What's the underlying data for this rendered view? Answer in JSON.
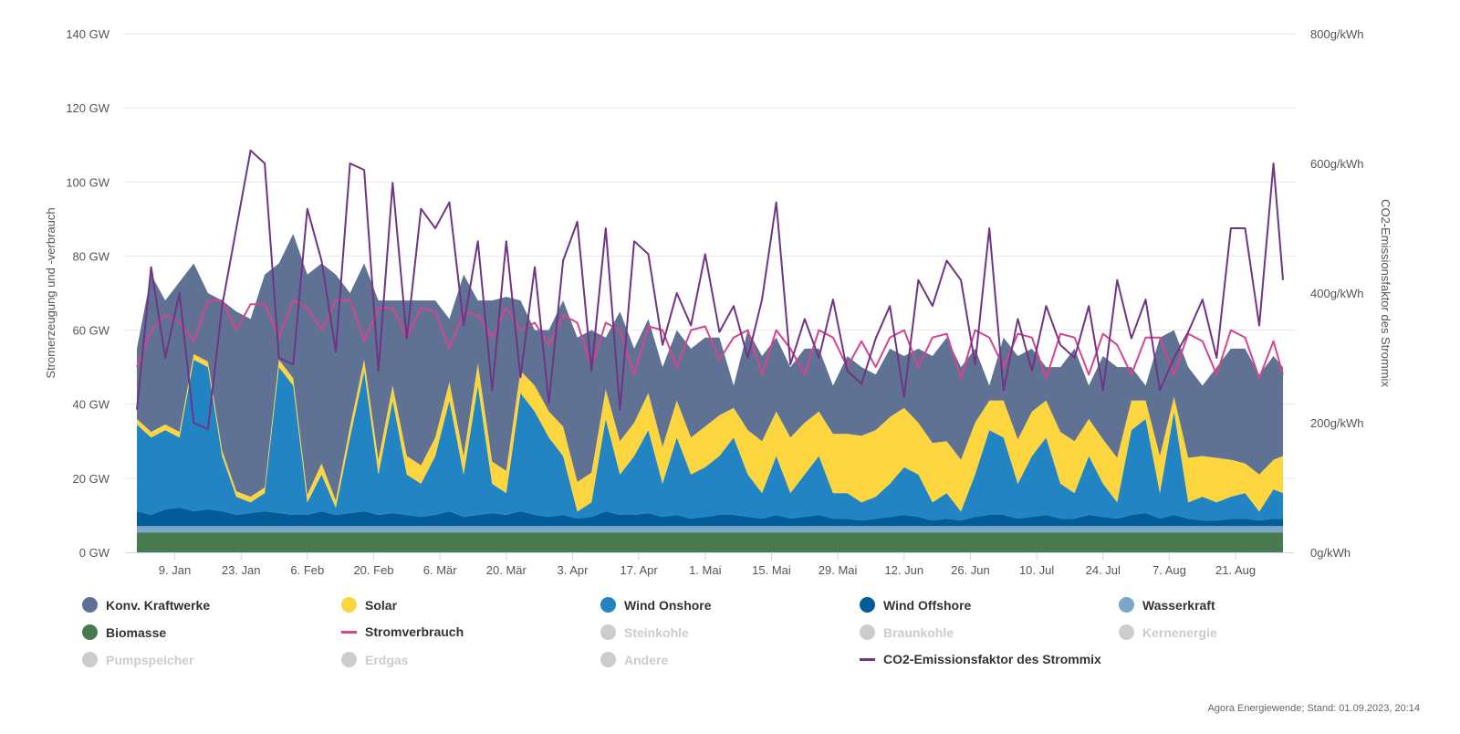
{
  "chart_data": {
    "type": "area",
    "stacked": true,
    "ylabel": "Stromerzeugung und -verbrauch",
    "ylabel_right": "CO2-Emissionsfaktor des Strommix",
    "ylim": [
      0,
      140
    ],
    "ylim_right": [
      0,
      800
    ],
    "yticks": [
      "0 GW",
      "20 GW",
      "40 GW",
      "60 GW",
      "80 GW",
      "100 GW",
      "120 GW",
      "140 GW"
    ],
    "yticks_values": [
      0,
      20,
      40,
      60,
      80,
      100,
      120,
      140
    ],
    "yticks_right": [
      "0g/kWh",
      "200g/kWh",
      "400g/kWh",
      "600g/kWh",
      "800g/kWh"
    ],
    "yticks_right_values": [
      0,
      200,
      400,
      600,
      800
    ],
    "xticks": [
      "9. Jan",
      "23. Jan",
      "6. Feb",
      "20. Feb",
      "6. Mär",
      "20. Mär",
      "3. Apr",
      "17. Apr",
      "1. Mai",
      "15. Mai",
      "29. Mai",
      "12. Jun",
      "26. Jun",
      "10. Jul",
      "24. Jul",
      "7. Aug",
      "21. Aug"
    ],
    "xticks_dates": [
      "2023-01-09",
      "2023-01-23",
      "2023-02-06",
      "2023-02-20",
      "2023-03-06",
      "2023-03-20",
      "2023-04-03",
      "2023-04-17",
      "2023-05-01",
      "2023-05-15",
      "2023-05-29",
      "2023-06-12",
      "2023-06-26",
      "2023-07-10",
      "2023-07-24",
      "2023-08-07",
      "2023-08-21"
    ],
    "xlim": [
      "2023-01-01",
      "2023-08-31"
    ],
    "grid": true,
    "legend_position": "bottom",
    "x": [
      "2023-01-01",
      "2023-01-04",
      "2023-01-07",
      "2023-01-10",
      "2023-01-13",
      "2023-01-16",
      "2023-01-19",
      "2023-01-22",
      "2023-01-25",
      "2023-01-28",
      "2023-01-31",
      "2023-02-03",
      "2023-02-06",
      "2023-02-09",
      "2023-02-12",
      "2023-02-15",
      "2023-02-18",
      "2023-02-21",
      "2023-02-24",
      "2023-02-27",
      "2023-03-02",
      "2023-03-05",
      "2023-03-08",
      "2023-03-11",
      "2023-03-14",
      "2023-03-17",
      "2023-03-20",
      "2023-03-23",
      "2023-03-26",
      "2023-03-29",
      "2023-04-01",
      "2023-04-04",
      "2023-04-07",
      "2023-04-10",
      "2023-04-13",
      "2023-04-16",
      "2023-04-19",
      "2023-04-22",
      "2023-04-25",
      "2023-04-28",
      "2023-05-01",
      "2023-05-04",
      "2023-05-07",
      "2023-05-10",
      "2023-05-13",
      "2023-05-16",
      "2023-05-19",
      "2023-05-22",
      "2023-05-25",
      "2023-05-28",
      "2023-05-31",
      "2023-06-03",
      "2023-06-06",
      "2023-06-09",
      "2023-06-12",
      "2023-06-15",
      "2023-06-18",
      "2023-06-21",
      "2023-06-24",
      "2023-06-27",
      "2023-06-30",
      "2023-07-03",
      "2023-07-06",
      "2023-07-09",
      "2023-07-12",
      "2023-07-15",
      "2023-07-18",
      "2023-07-21",
      "2023-07-24",
      "2023-07-27",
      "2023-07-30",
      "2023-08-02",
      "2023-08-05",
      "2023-08-08",
      "2023-08-11",
      "2023-08-14",
      "2023-08-17",
      "2023-08-20",
      "2023-08-23",
      "2023-08-26",
      "2023-08-29",
      "2023-08-31"
    ],
    "series": [
      {
        "name": "Biomasse",
        "kind": "area",
        "color": "#487a50",
        "values": [
          5.3,
          5.3,
          5.3,
          5.3,
          5.3,
          5.3,
          5.3,
          5.3,
          5.3,
          5.3,
          5.3,
          5.3,
          5.3,
          5.3,
          5.3,
          5.3,
          5.3,
          5.3,
          5.3,
          5.3,
          5.3,
          5.3,
          5.3,
          5.3,
          5.3,
          5.3,
          5.3,
          5.3,
          5.3,
          5.3,
          5.3,
          5.3,
          5.3,
          5.3,
          5.3,
          5.3,
          5.3,
          5.3,
          5.3,
          5.3,
          5.3,
          5.3,
          5.3,
          5.3,
          5.3,
          5.3,
          5.3,
          5.3,
          5.3,
          5.3,
          5.3,
          5.3,
          5.3,
          5.3,
          5.3,
          5.3,
          5.3,
          5.3,
          5.3,
          5.3,
          5.3,
          5.3,
          5.3,
          5.3,
          5.3,
          5.3,
          5.3,
          5.3,
          5.3,
          5.3,
          5.3,
          5.3,
          5.3,
          5.3,
          5.3,
          5.3,
          5.3,
          5.3,
          5.3,
          5.3,
          5.3,
          5.3
        ]
      },
      {
        "name": "Wasserkraft",
        "kind": "area",
        "color": "#7ba6c9",
        "values": [
          1.8,
          1.8,
          1.8,
          1.8,
          1.8,
          1.8,
          1.8,
          1.8,
          1.8,
          1.8,
          1.8,
          1.8,
          1.8,
          1.8,
          1.8,
          1.8,
          1.8,
          1.8,
          1.8,
          1.8,
          1.8,
          1.8,
          1.8,
          1.8,
          1.8,
          1.8,
          1.8,
          1.8,
          1.8,
          1.8,
          1.8,
          1.8,
          1.8,
          1.8,
          1.8,
          1.8,
          1.8,
          1.8,
          1.8,
          1.8,
          1.8,
          1.8,
          1.8,
          1.8,
          1.8,
          1.8,
          1.8,
          1.8,
          1.8,
          1.8,
          1.8,
          1.8,
          1.8,
          1.8,
          1.8,
          1.8,
          1.8,
          1.8,
          1.8,
          1.8,
          1.8,
          1.8,
          1.8,
          1.8,
          1.8,
          1.8,
          1.8,
          1.8,
          1.8,
          1.8,
          1.8,
          1.8,
          1.8,
          1.8,
          1.8,
          1.8,
          1.8,
          1.8,
          1.8,
          1.8,
          1.8,
          1.8
        ]
      },
      {
        "name": "Wind Offshore",
        "kind": "area",
        "color": "#015c98",
        "values": [
          4,
          3,
          4.5,
          5,
          4,
          4.5,
          4,
          3,
          3.5,
          4,
          3.5,
          3,
          3,
          4,
          3,
          3.5,
          4,
          3,
          3.5,
          3,
          2.5,
          3,
          4,
          2.5,
          3,
          3.5,
          3,
          4,
          3,
          2.5,
          3,
          2,
          2.5,
          4,
          3,
          3,
          3.5,
          2.5,
          3,
          2,
          2.5,
          3,
          3,
          2.5,
          2,
          3,
          2,
          2.5,
          3,
          2,
          2,
          1.5,
          2,
          2.5,
          3,
          2.5,
          1.5,
          2,
          1.5,
          2.5,
          3,
          3,
          2,
          2.5,
          3,
          2,
          2,
          3,
          2.5,
          2,
          3,
          3.5,
          2,
          3,
          2,
          1.5,
          1.5,
          2,
          2,
          1.5,
          2,
          2
        ]
      },
      {
        "name": "Wind Onshore",
        "kind": "area",
        "color": "#2284c2",
        "values": [
          23.4,
          20.9,
          21.4,
          18.9,
          40.9,
          38.4,
          14.9,
          4.9,
          2.9,
          4.9,
          39.4,
          34.9,
          3.4,
          9.9,
          1.9,
          20.4,
          37.9,
          10.9,
          30.4,
          10.9,
          8.9,
          15.9,
          29.9,
          11.4,
          34.9,
          7.9,
          5.9,
          31.9,
          27.9,
          21.4,
          15.9,
          1.9,
          3.9,
          24.9,
          10.9,
          15.9,
          22.4,
          8.9,
          20.9,
          11.9,
          13.4,
          15.9,
          20.9,
          11.4,
          6.9,
          15.9,
          6.9,
          11.4,
          15.9,
          6.9,
          6.9,
          4.9,
          5.9,
          8.9,
          12.9,
          11.4,
          4.9,
          6.9,
          2.4,
          11.4,
          22.9,
          20.9,
          9.4,
          16.4,
          20.9,
          9.4,
          6.9,
          15.9,
          8.9,
          4.4,
          22.9,
          25.4,
          6.9,
          27.9,
          4.4,
          6.4,
          4.9,
          5.9,
          6.9,
          2.4,
          7.9,
          6.9
        ]
      },
      {
        "name": "Solar",
        "kind": "area",
        "color": "#fdd63f",
        "values": [
          1.5,
          1.5,
          1.5,
          1.5,
          1.5,
          1.5,
          1.5,
          1.5,
          1.5,
          1.5,
          2,
          2,
          2,
          3,
          2,
          3,
          3,
          4,
          4,
          5,
          5,
          5,
          5,
          5,
          6,
          6,
          6,
          6,
          7,
          7,
          8,
          8,
          8,
          8,
          9,
          9,
          10,
          10,
          10,
          10,
          11,
          11,
          8,
          12,
          14,
          12,
          15,
          14,
          12,
          16,
          16,
          18,
          18,
          18,
          16,
          14,
          16,
          14,
          14,
          14,
          8,
          10,
          12,
          12,
          10,
          14,
          14,
          10,
          12,
          12,
          8,
          5,
          10,
          4,
          12,
          11,
          12,
          10,
          8,
          10,
          8,
          10
        ]
      },
      {
        "name": "Konv. Kraftwerke",
        "kind": "area",
        "color": "#5f7293",
        "values": [
          19,
          42.5,
          33.5,
          40.5,
          24.5,
          18.5,
          40.5,
          48.5,
          48,
          57.5,
          26,
          39,
          59.5,
          54,
          61,
          36,
          26,
          43,
          23,
          42,
          44.5,
          37,
          17,
          49,
          17,
          43.5,
          47,
          19,
          15,
          22,
          34,
          39,
          38.5,
          14,
          35,
          20,
          20,
          21.5,
          19,
          24,
          24,
          21,
          6,
          27,
          23,
          20,
          19,
          20,
          17,
          13,
          21,
          18.5,
          15,
          18.5,
          14,
          20,
          23.5,
          28,
          25,
          20,
          4,
          17,
          22.5,
          17,
          9,
          17.5,
          25,
          9,
          22.5,
          24.5,
          9,
          4,
          32,
          18,
          24.5,
          19,
          24.5,
          30,
          31,
          27,
          28,
          24
        ]
      },
      {
        "name": "Stromverbrauch",
        "kind": "line",
        "axis": "left",
        "color": "#d4458c",
        "values": [
          50,
          60,
          64,
          62,
          57,
          68,
          68,
          60,
          67,
          67,
          58,
          68,
          66,
          60,
          68,
          68,
          57,
          66,
          66,
          58,
          66,
          65,
          55,
          65,
          64,
          58,
          66,
          60,
          62,
          56,
          64,
          62,
          50,
          62,
          60,
          48,
          61,
          60,
          50,
          60,
          61,
          52,
          58,
          60,
          48,
          60,
          55,
          48,
          60,
          58,
          50,
          57,
          50,
          58,
          60,
          50,
          58,
          59,
          47,
          60,
          58,
          50,
          59,
          58,
          47,
          59,
          58,
          48,
          59,
          56,
          48,
          58,
          58,
          48,
          59,
          57,
          48,
          60,
          58,
          47,
          57,
          48
        ]
      },
      {
        "name": "CO2-Emissionsfaktor des Strommix",
        "kind": "line",
        "axis": "right",
        "color": "#6f3585",
        "values": [
          220,
          440,
          300,
          400,
          200,
          190,
          380,
          500,
          620,
          600,
          300,
          290,
          530,
          450,
          310,
          600,
          590,
          280,
          570,
          330,
          530,
          500,
          540,
          350,
          480,
          250,
          480,
          270,
          440,
          230,
          450,
          510,
          280,
          500,
          220,
          480,
          460,
          320,
          400,
          350,
          460,
          340,
          380,
          300,
          390,
          540,
          290,
          360,
          300,
          390,
          280,
          260,
          330,
          380,
          240,
          420,
          380,
          450,
          420,
          290,
          500,
          250,
          360,
          280,
          380,
          320,
          300,
          380,
          250,
          420,
          330,
          390,
          250,
          300,
          340,
          390,
          300,
          500,
          500,
          350,
          600,
          420
        ]
      }
    ]
  },
  "legend": {
    "items": [
      {
        "label": "Konv. Kraftwerke",
        "color": "#5f7293",
        "symbol": "circle",
        "visible": true
      },
      {
        "label": "Solar",
        "color": "#fdd63f",
        "symbol": "circle",
        "visible": true
      },
      {
        "label": "Wind Onshore",
        "color": "#2284c2",
        "symbol": "circle",
        "visible": true
      },
      {
        "label": "Wind Offshore",
        "color": "#015c98",
        "symbol": "circle",
        "visible": true
      },
      {
        "label": "Wasserkraft",
        "color": "#7ba6c9",
        "symbol": "circle",
        "visible": true
      },
      {
        "label": "Biomasse",
        "color": "#487a50",
        "symbol": "circle",
        "visible": true
      },
      {
        "label": "Stromverbrauch",
        "color": "#d4458c",
        "symbol": "line",
        "visible": true
      },
      {
        "label": "Steinkohle",
        "color": "#cccccc",
        "symbol": "circle",
        "visible": false
      },
      {
        "label": "Braunkohle",
        "color": "#cccccc",
        "symbol": "circle",
        "visible": false
      },
      {
        "label": "Kernenergie",
        "color": "#cccccc",
        "symbol": "circle",
        "visible": false
      },
      {
        "label": "Pumpspeicher",
        "color": "#cccccc",
        "symbol": "circle",
        "visible": false
      },
      {
        "label": "Erdgas",
        "color": "#cccccc",
        "symbol": "circle",
        "visible": false
      },
      {
        "label": "Andere",
        "color": "#cccccc",
        "symbol": "circle",
        "visible": false
      },
      {
        "label": "CO2-Emissionsfaktor des Strommix",
        "color": "#6f3585",
        "symbol": "line",
        "visible": true
      }
    ]
  },
  "footer": {
    "credit": "Agora Energiewende; Stand: 01.09.2023, 20:14"
  }
}
